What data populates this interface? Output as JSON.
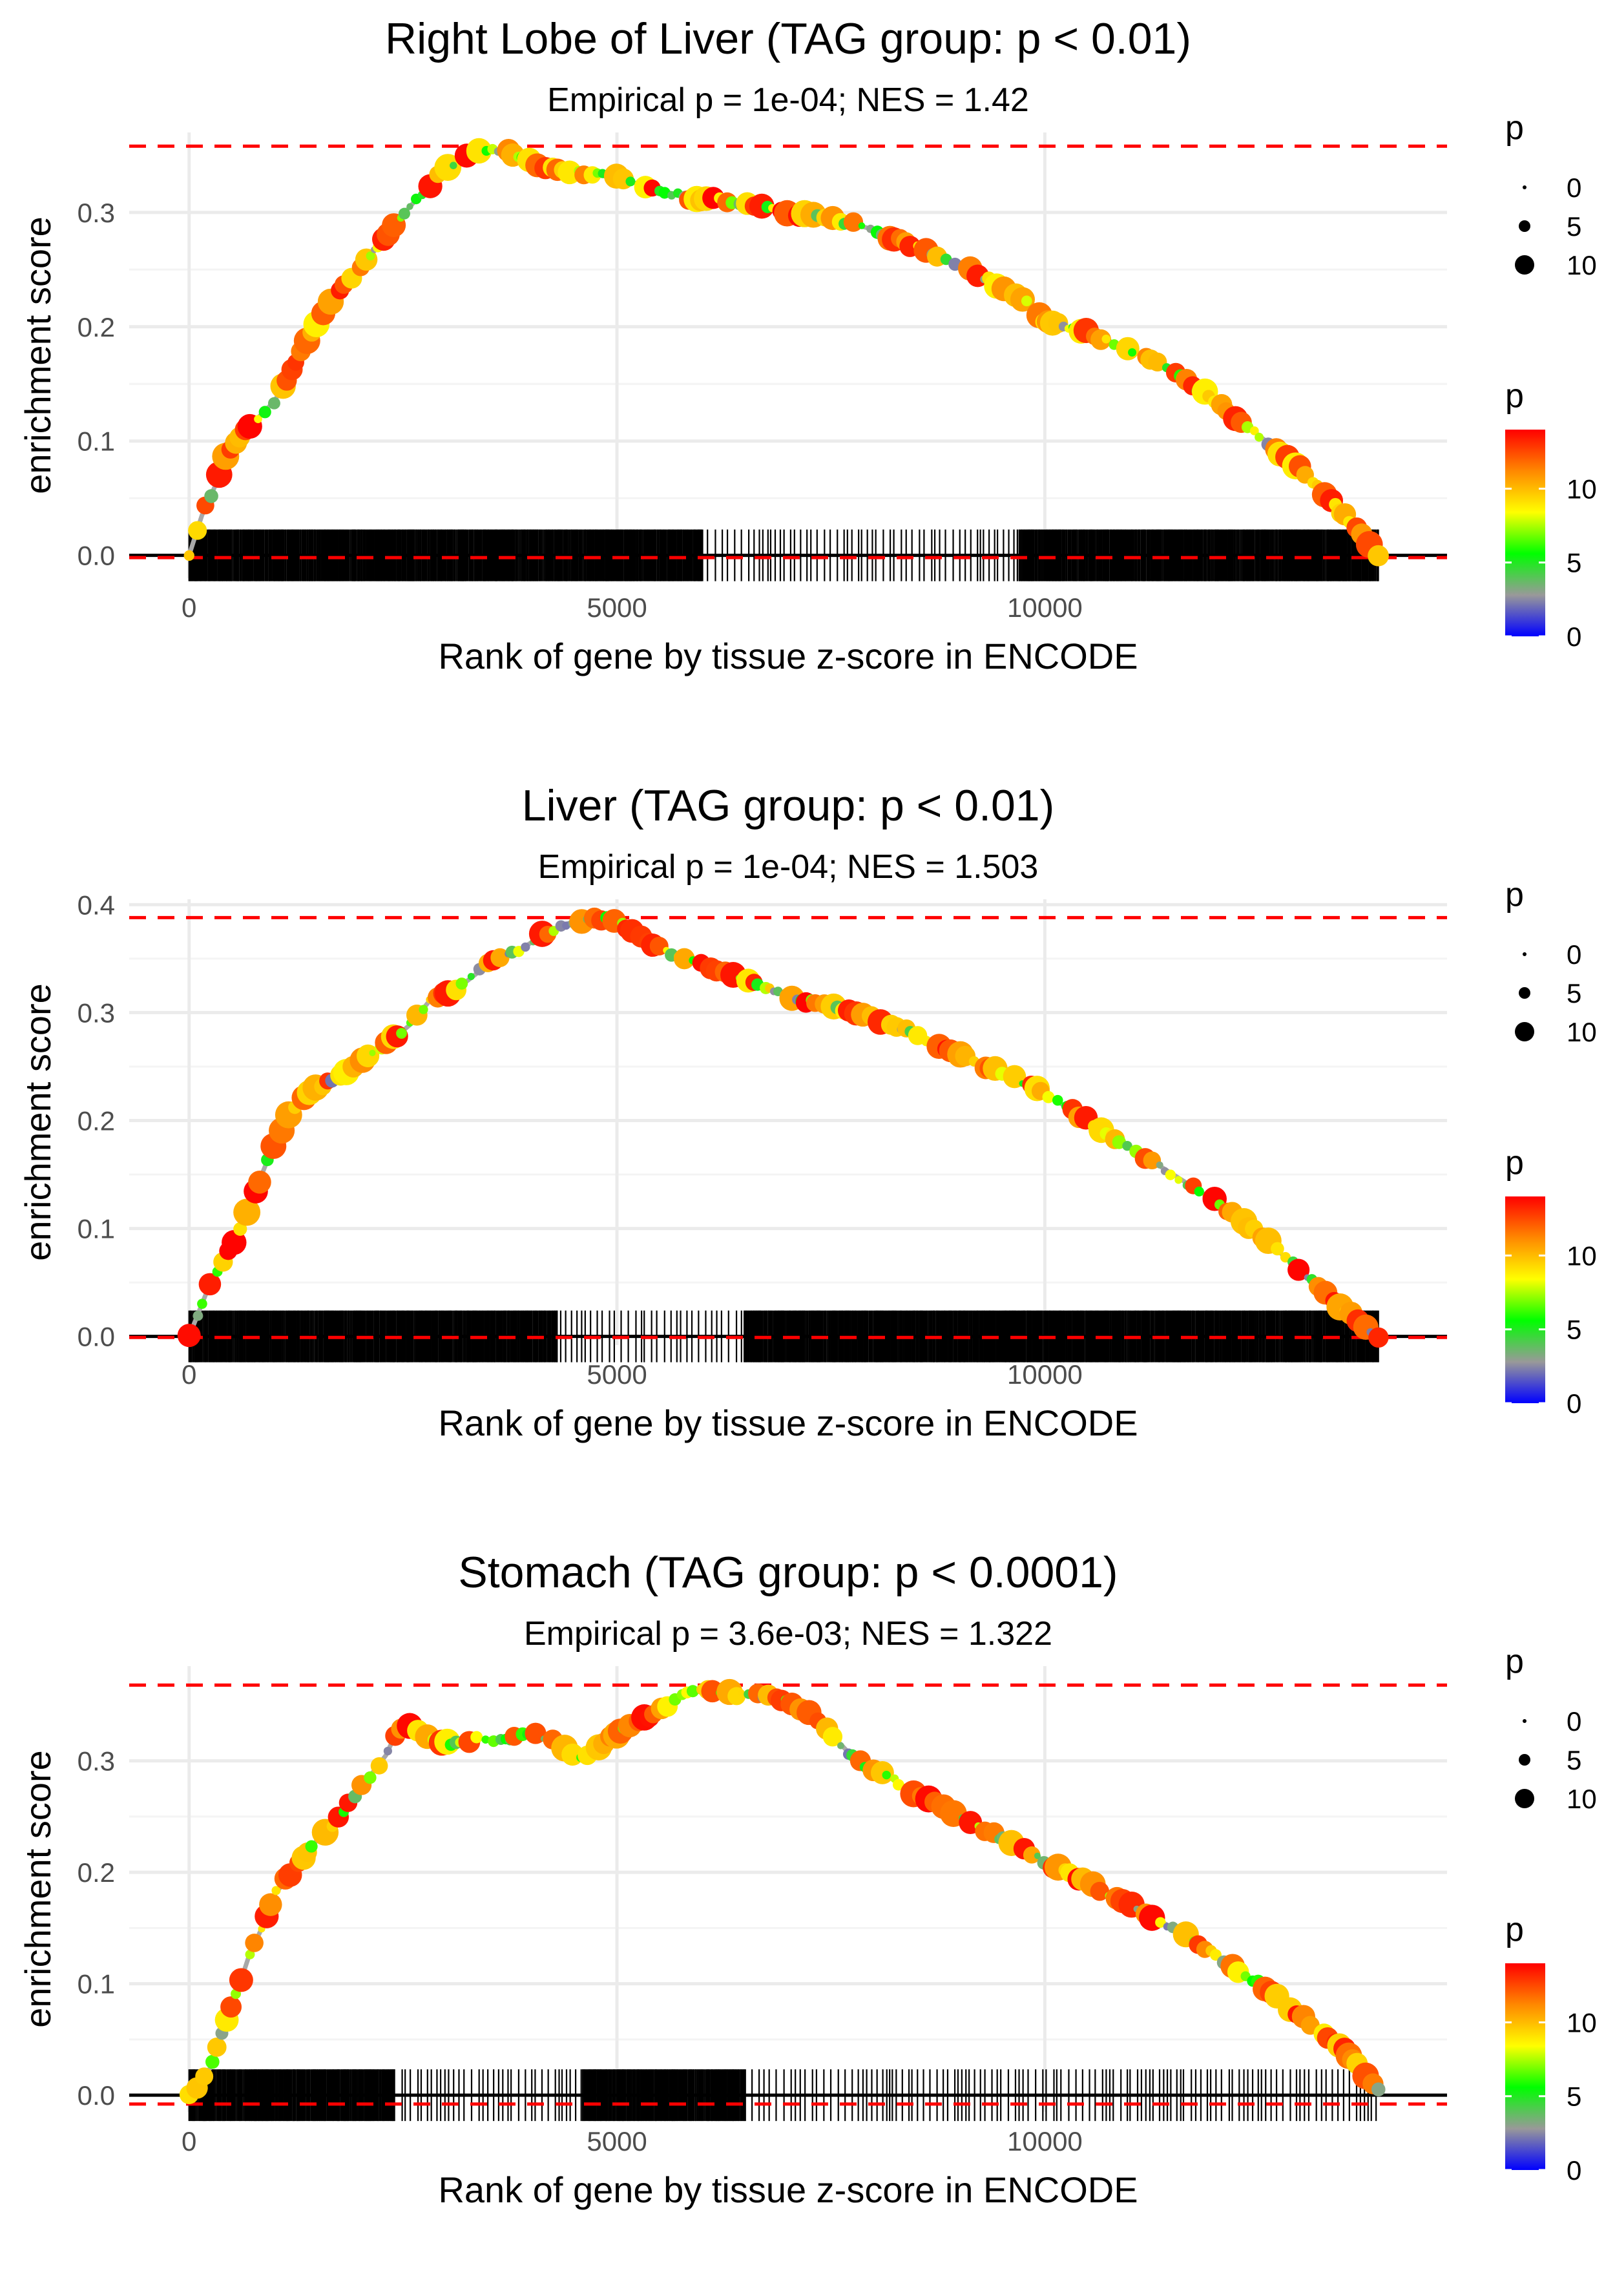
{
  "chart_data": [
    {
      "type": "line",
      "title": "Right Lobe of Liver (TAG group: p < 0.01)",
      "subtitle": "Empirical p = 1e-04; NES = 1.42",
      "xlabel": "Rank of gene by tissue z-score in ENCODE",
      "ylabel": "enrichment score",
      "xlim": [
        -700,
        14700
      ],
      "ylim": [
        -0.02,
        0.37
      ],
      "x_ticks": [
        "0",
        "5000",
        "10000"
      ],
      "x_tick_values": [
        0,
        5000,
        10000
      ],
      "y_ticks": [
        "0.0",
        "0.1",
        "0.2",
        "0.3"
      ],
      "y_tick_values": [
        0,
        0.1,
        0.2,
        0.3
      ],
      "ref_lines": {
        "max_es": 0.358,
        "min_es": -0.002
      },
      "x": [
        0,
        150,
        300,
        450,
        600,
        800,
        1000,
        1250,
        1500,
        1800,
        2100,
        2400,
        2700,
        3000,
        3300,
        3500,
        3800,
        4000,
        4300,
        4600,
        5000,
        5400,
        5800,
        6000,
        6200,
        6500,
        7000,
        7500,
        8000,
        8500,
        9000,
        9500,
        9800,
        10000,
        10500,
        11000,
        11500,
        12000,
        12500,
        13000,
        13500,
        13900
      ],
      "y": [
        0,
        0.035,
        0.06,
        0.09,
        0.105,
        0.12,
        0.135,
        0.17,
        0.205,
        0.235,
        0.26,
        0.29,
        0.315,
        0.34,
        0.35,
        0.355,
        0.352,
        0.345,
        0.337,
        0.335,
        0.33,
        0.322,
        0.313,
        0.31,
        0.312,
        0.308,
        0.3,
        0.295,
        0.285,
        0.27,
        0.255,
        0.235,
        0.22,
        0.205,
        0.195,
        0.18,
        0.16,
        0.135,
        0.105,
        0.075,
        0.035,
        0
      ],
      "hits": "0-6000:dense; 6000-9700:sparse; 9700-14000:dense",
      "legend_size": {
        "title": "p",
        "labels": [
          "0",
          "5",
          "10"
        ]
      },
      "legend_color": {
        "title": "p",
        "labels": [
          "0",
          "5",
          "10"
        ],
        "colors": [
          "#0000ff",
          "#999999",
          "#00ff00",
          "#ffff00",
          "#ff8800",
          "#ff0000"
        ]
      }
    },
    {
      "type": "line",
      "title": "Liver (TAG group: p < 0.01)",
      "subtitle": "Empirical p = 1e-04; NES = 1.503",
      "xlabel": "Rank of gene by tissue z-score in ENCODE",
      "ylabel": "enrichment score",
      "xlim": [
        -700,
        14700
      ],
      "ylim": [
        -0.008,
        0.405
      ],
      "x_ticks": [
        "0",
        "5000",
        "10000"
      ],
      "x_tick_values": [
        0,
        5000,
        10000
      ],
      "y_ticks": [
        "0.0",
        "0.1",
        "0.2",
        "0.3",
        "0.4"
      ],
      "y_tick_values": [
        0,
        0.1,
        0.2,
        0.3,
        0.4
      ],
      "ref_lines": {
        "max_es": 0.388,
        "min_es": -0.001
      },
      "x": [
        0,
        200,
        400,
        600,
        800,
        1000,
        1200,
        1400,
        1700,
        2000,
        2300,
        2600,
        2800,
        3100,
        3500,
        3900,
        4200,
        4500,
        4800,
        5000,
        5300,
        5600,
        6000,
        6500,
        7000,
        7500,
        8000,
        8500,
        9000,
        9500,
        10000,
        10500,
        11000,
        11500,
        12000,
        12500,
        13000,
        13500,
        13900
      ],
      "y": [
        0,
        0.04,
        0.07,
        0.1,
        0.14,
        0.18,
        0.21,
        0.225,
        0.24,
        0.255,
        0.27,
        0.29,
        0.31,
        0.32,
        0.345,
        0.36,
        0.375,
        0.385,
        0.387,
        0.385,
        0.37,
        0.355,
        0.345,
        0.33,
        0.315,
        0.305,
        0.295,
        0.28,
        0.26,
        0.245,
        0.225,
        0.2,
        0.175,
        0.15,
        0.125,
        0.095,
        0.06,
        0.025,
        0
      ],
      "hits": "0-4300:dense; 4300-6500:sparse; 6500-14000:dense",
      "legend_size": {
        "title": "p",
        "labels": [
          "0",
          "5",
          "10"
        ]
      },
      "legend_color": {
        "title": "p",
        "labels": [
          "0",
          "5",
          "10"
        ],
        "colors": [
          "#0000ff",
          "#999999",
          "#00ff00",
          "#ffff00",
          "#ff8800",
          "#ff0000"
        ]
      }
    },
    {
      "type": "line",
      "title": "Stomach (TAG group: p < 0.0001)",
      "subtitle": "Empirical p = 3.6e-03; NES = 1.322",
      "xlabel": "Rank of gene by tissue z-score in ENCODE",
      "ylabel": "enrichment score",
      "xlim": [
        -700,
        14700
      ],
      "ylim": [
        -0.015,
        0.385
      ],
      "x_ticks": [
        "0",
        "5000",
        "10000"
      ],
      "x_tick_values": [
        0,
        5000,
        10000
      ],
      "y_ticks": [
        "0.0",
        "0.1",
        "0.2",
        "0.3"
      ],
      "y_tick_values": [
        0,
        0.1,
        0.2,
        0.3
      ],
      "ref_lines": {
        "max_es": 0.368,
        "min_es": -0.008
      },
      "x": [
        0,
        150,
        250,
        400,
        550,
        700,
        850,
        1000,
        1200,
        1450,
        1700,
        1900,
        2100,
        2300,
        2450,
        2600,
        2800,
        3100,
        3400,
        3700,
        4000,
        4200,
        4400,
        4600,
        4750,
        4900,
        5100,
        5400,
        5700,
        5900,
        6200,
        6500,
        7000,
        7300,
        7800,
        8200,
        8500,
        9000,
        9500,
        10000,
        10500,
        11000,
        11500,
        12000,
        12500,
        13000,
        13500,
        13900
      ],
      "y": [
        0,
        0.012,
        0.025,
        0.06,
        0.09,
        0.125,
        0.15,
        0.18,
        0.2,
        0.225,
        0.245,
        0.265,
        0.285,
        0.305,
        0.33,
        0.33,
        0.32,
        0.315,
        0.32,
        0.318,
        0.325,
        0.32,
        0.31,
        0.3,
        0.31,
        0.32,
        0.33,
        0.34,
        0.355,
        0.365,
        0.36,
        0.36,
        0.355,
        0.34,
        0.3,
        0.285,
        0.27,
        0.25,
        0.23,
        0.21,
        0.19,
        0.17,
        0.15,
        0.125,
        0.1,
        0.07,
        0.04,
        0.005
      ],
      "hits": "0-2400:dense; 2400-4600:sparse; 4600-6500:dense; 6500-14000:sparse",
      "legend_size": {
        "title": "p",
        "labels": [
          "0",
          "5",
          "10"
        ]
      },
      "legend_color": {
        "title": "p",
        "labels": [
          "0",
          "5",
          "10"
        ],
        "colors": [
          "#0000ff",
          "#999999",
          "#00ff00",
          "#ffff00",
          "#ff8800",
          "#ff0000"
        ]
      }
    }
  ]
}
